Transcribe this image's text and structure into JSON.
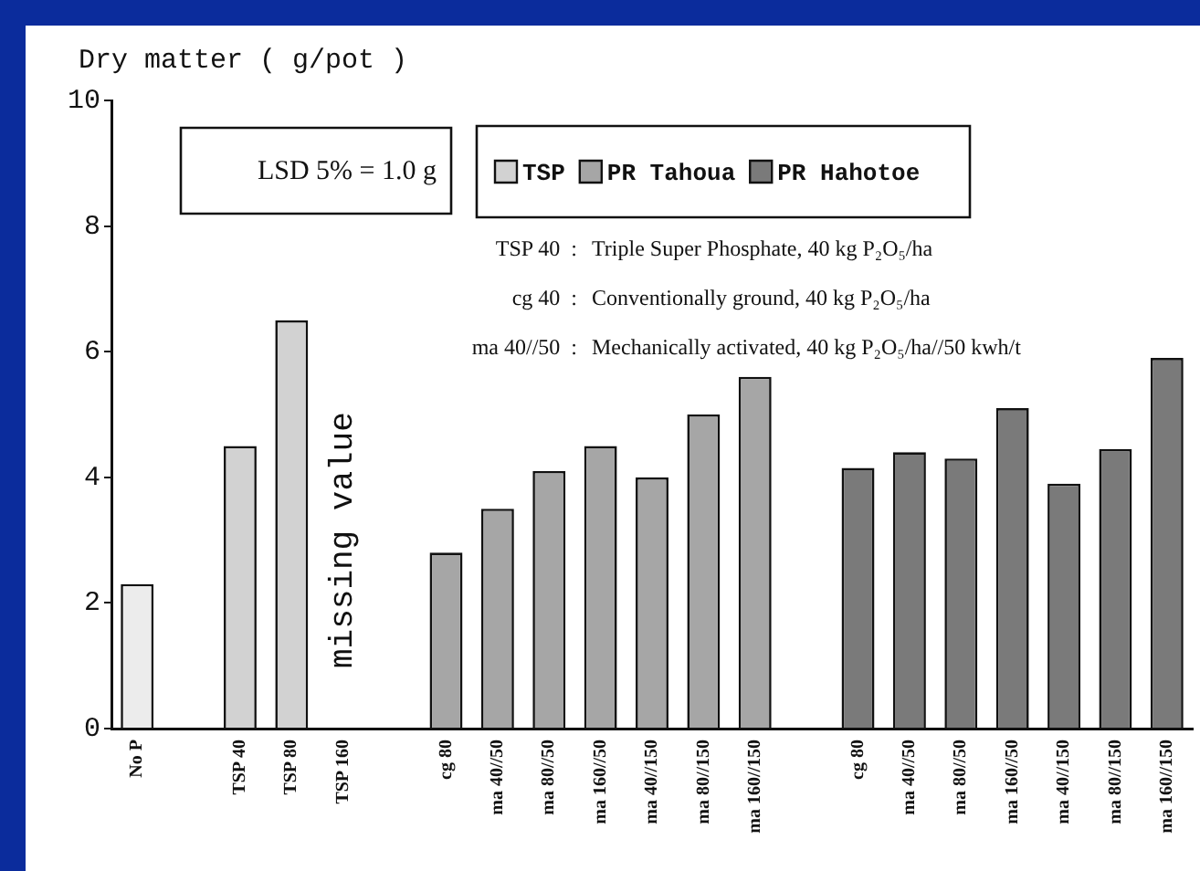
{
  "chart_data": {
    "type": "bar",
    "ylabel": "Dry matter ( g/pot )",
    "categories": [
      "No P",
      null,
      "TSP 40",
      "TSP 80",
      "TSP 160",
      null,
      "cg 80",
      "ma 40//50",
      "ma 80//50",
      "ma 160//50",
      "ma 40//150",
      "ma 80//150",
      "ma 160//150",
      null,
      "cg 80",
      "ma 40//50",
      "ma 80//50",
      "ma 160//50",
      "ma 40//150",
      "ma 80//150",
      "ma 160//150"
    ],
    "series": [
      {
        "color": "#ececec",
        "values": [
          2.3,
          null,
          null,
          null,
          null,
          null,
          null,
          null,
          null,
          null,
          null,
          null,
          null,
          null,
          null,
          null,
          null,
          null,
          null,
          null,
          null
        ]
      },
      {
        "name": "TSP",
        "color": "#d2d2d2",
        "values": [
          null,
          null,
          4.5,
          6.5,
          null,
          null,
          null,
          null,
          null,
          null,
          null,
          null,
          null,
          null,
          null,
          null,
          null,
          null,
          null,
          null,
          null
        ]
      },
      {
        "name": "PR Tahoua",
        "color": "#a6a6a6",
        "values": [
          null,
          null,
          null,
          null,
          null,
          null,
          2.8,
          3.5,
          4.1,
          4.5,
          4.0,
          5.0,
          5.6,
          null,
          null,
          null,
          null,
          null,
          null,
          null,
          null
        ]
      },
      {
        "name": "PR Hahotoe",
        "color": "#7a7a7a",
        "values": [
          null,
          null,
          null,
          null,
          null,
          null,
          null,
          null,
          null,
          null,
          null,
          null,
          null,
          null,
          4.15,
          4.4,
          4.3,
          5.1,
          3.9,
          4.45,
          5.9
        ]
      }
    ],
    "ylim": [
      0,
      10
    ],
    "yticks": [
      0,
      2,
      4,
      6,
      8,
      10
    ],
    "grid": false,
    "legend": "top right",
    "annotations": [
      "LSD 5% = 1.0 g",
      "TSP 40 :  Triple Super Phosphate, 40 kg P₂O₅/ha",
      "cg 40 :  Conventionally ground, 40 kg P₂O₅/ha",
      "ma 40//50 :  Mechanically activated, 40 kg P₂O₅/ha//50 kwh/t",
      "missing value"
    ]
  }
}
